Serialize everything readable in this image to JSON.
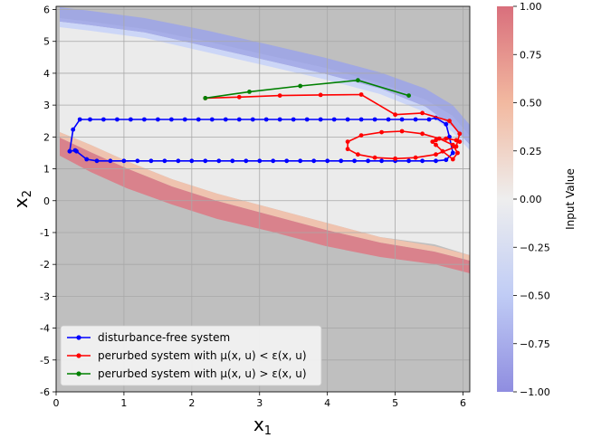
{
  "chart_data": {
    "type": "line",
    "xlabel": "x",
    "xlabel_sub": "1",
    "ylabel": "x",
    "ylabel_sub": "2",
    "xlim": [
      0,
      6.1
    ],
    "ylim": [
      -6,
      6.1
    ],
    "xticks": [
      0,
      1,
      2,
      3,
      4,
      5,
      6
    ],
    "yticks": [
      -6,
      -5,
      -4,
      -3,
      -2,
      -1,
      0,
      1,
      2,
      3,
      4,
      5,
      6
    ],
    "grid": true,
    "colorbar": {
      "label": "Input Value",
      "min": -1.0,
      "max": 1.0,
      "ticks": [
        "1.00",
        "0.75",
        "0.50",
        "0.25",
        "0.00",
        "−0.25",
        "−0.50",
        "−0.75",
        "−1.00"
      ],
      "tick_values": [
        1.0,
        0.75,
        0.5,
        0.25,
        0.0,
        -0.25,
        -0.5,
        -0.75,
        -1.0
      ],
      "colormap": [
        "#d96f7c",
        "#f2b9a0",
        "#eeeeee",
        "#c0ccf5",
        "#8f8de0"
      ]
    },
    "legend_position": "lower-left",
    "series": [
      {
        "name": "disturbance-free system",
        "color": "#0000ff",
        "x": [
          0.2,
          0.28,
          0.3,
          0.45,
          0.6,
          0.8,
          1.0,
          1.2,
          1.4,
          1.6,
          1.8,
          2.0,
          2.2,
          2.4,
          2.6,
          2.8,
          3.0,
          3.2,
          3.4,
          3.6,
          3.8,
          4.0,
          4.2,
          4.4,
          4.6,
          4.8,
          5.0,
          5.2,
          5.4,
          5.6,
          5.75,
          5.85,
          5.8,
          5.75,
          5.6,
          5.5,
          5.3,
          5.1,
          4.9,
          4.7,
          4.5,
          4.3,
          4.1,
          3.9,
          3.7,
          3.5,
          3.3,
          3.1,
          2.9,
          2.7,
          2.5,
          2.3,
          2.1,
          1.9,
          1.7,
          1.5,
          1.3,
          1.1,
          0.9,
          0.7,
          0.5,
          0.35,
          0.25,
          0.2
        ],
        "y": [
          1.55,
          1.58,
          1.55,
          1.3,
          1.25,
          1.25,
          1.25,
          1.25,
          1.25,
          1.25,
          1.25,
          1.25,
          1.25,
          1.25,
          1.25,
          1.25,
          1.25,
          1.25,
          1.25,
          1.25,
          1.25,
          1.25,
          1.25,
          1.25,
          1.25,
          1.25,
          1.25,
          1.25,
          1.25,
          1.25,
          1.28,
          1.5,
          2.0,
          2.4,
          2.6,
          2.55,
          2.55,
          2.55,
          2.55,
          2.55,
          2.55,
          2.55,
          2.55,
          2.55,
          2.55,
          2.55,
          2.55,
          2.55,
          2.55,
          2.55,
          2.55,
          2.55,
          2.55,
          2.55,
          2.55,
          2.55,
          2.55,
          2.55,
          2.55,
          2.55,
          2.55,
          2.55,
          2.23,
          1.55
        ]
      },
      {
        "name": "perurbed system with μ(x, u) < ε(x, u)",
        "color": "#ff0000",
        "x": [
          2.2,
          2.7,
          3.3,
          3.9,
          4.5,
          5.0,
          5.4,
          5.8,
          5.95,
          5.9,
          5.6,
          5.3,
          5.0,
          4.7,
          4.45,
          4.3,
          4.3,
          4.5,
          4.8,
          5.1,
          5.4,
          5.65,
          5.85,
          5.92,
          5.85,
          5.7,
          5.6,
          5.55,
          5.6,
          5.75,
          5.9,
          5.95
        ],
        "y": [
          3.22,
          3.25,
          3.3,
          3.32,
          3.33,
          2.7,
          2.75,
          2.5,
          2.1,
          1.7,
          1.45,
          1.35,
          1.32,
          1.35,
          1.45,
          1.62,
          1.85,
          2.05,
          2.15,
          2.18,
          2.1,
          1.95,
          1.75,
          1.5,
          1.3,
          1.55,
          1.75,
          1.85,
          1.9,
          1.95,
          1.9,
          1.85
        ]
      },
      {
        "name": "perurbed system with μ(x, u) > ε(x, u)",
        "color": "#008000",
        "x": [
          2.2,
          2.85,
          3.6,
          4.45,
          5.2
        ],
        "y": [
          3.22,
          3.42,
          3.6,
          3.78,
          3.3
        ]
      }
    ]
  }
}
